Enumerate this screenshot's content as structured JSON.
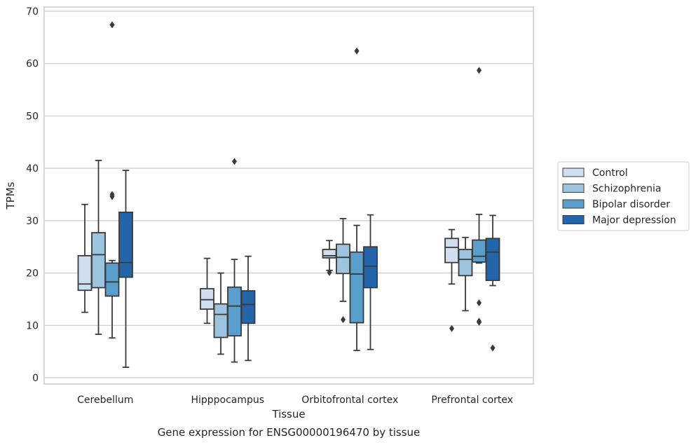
{
  "chart_data": {
    "type": "box",
    "caption": "Gene expression for ENSG00000196470 by tissue",
    "xlabel": "Tissue",
    "ylabel": "TPMs",
    "ylim": [
      -1.2,
      70.8
    ],
    "yticks": [
      0,
      10,
      20,
      30,
      40,
      50,
      60,
      70
    ],
    "grid": "horizontal",
    "legend_position": "right",
    "categories": [
      "Cerebellum",
      "Hipppocampus",
      "Orbitofrontal cortex",
      "Prefrontal cortex"
    ],
    "series": [
      {
        "name": "Control",
        "color": "#d0dff0",
        "boxes": [
          {
            "whisker_low": 12.5,
            "q1": 16.7,
            "median": 17.9,
            "q3": 23.3,
            "whisker_high": 33.1,
            "outliers": []
          },
          {
            "whisker_low": 10.4,
            "q1": 13.1,
            "median": 14.9,
            "q3": 17.0,
            "whisker_high": 22.8,
            "outliers": []
          },
          {
            "whisker_low": 20.5,
            "q1": 22.9,
            "median": 23.3,
            "q3": 24.5,
            "whisker_high": 26.2,
            "outliers": [
              20.1
            ]
          },
          {
            "whisker_low": 17.9,
            "q1": 22.0,
            "median": 24.9,
            "q3": 26.6,
            "whisker_high": 28.3,
            "outliers": [
              9.4
            ]
          }
        ]
      },
      {
        "name": "Schizophrenia",
        "color": "#9dc4df",
        "boxes": [
          {
            "whisker_low": 8.3,
            "q1": 17.2,
            "median": 23.5,
            "q3": 27.7,
            "whisker_high": 41.5,
            "outliers": []
          },
          {
            "whisker_low": 4.5,
            "q1": 7.7,
            "median": 12.1,
            "q3": 14.1,
            "whisker_high": 20.0,
            "outliers": []
          },
          {
            "whisker_low": 14.6,
            "q1": 19.9,
            "median": 23.0,
            "q3": 25.5,
            "whisker_high": 30.4,
            "outliers": [
              11.1
            ]
          },
          {
            "whisker_low": 12.8,
            "q1": 19.5,
            "median": 22.6,
            "q3": 24.5,
            "whisker_high": 26.8,
            "outliers": []
          }
        ]
      },
      {
        "name": "Bipolar disorder",
        "color": "#5a9ecb",
        "boxes": [
          {
            "whisker_low": 7.6,
            "q1": 15.6,
            "median": 18.3,
            "q3": 21.9,
            "whisker_high": 22.4,
            "outliers": [
              34.6,
              35.0,
              67.4
            ]
          },
          {
            "whisker_low": 3.0,
            "q1": 8.0,
            "median": 13.7,
            "q3": 17.3,
            "whisker_high": 22.6,
            "outliers": [
              41.3
            ]
          },
          {
            "whisker_low": 5.2,
            "q1": 10.5,
            "median": 19.8,
            "q3": 24.0,
            "whisker_high": 29.1,
            "outliers": [
              62.4
            ]
          },
          {
            "whisker_low": 21.9,
            "q1": 22.1,
            "median": 23.2,
            "q3": 26.3,
            "whisker_high": 31.2,
            "outliers": [
              14.3,
              10.8,
              10.6,
              58.7
            ]
          }
        ]
      },
      {
        "name": "Major depression",
        "color": "#2464a8",
        "boxes": [
          {
            "whisker_low": 2.0,
            "q1": 19.2,
            "median": 22.0,
            "q3": 31.6,
            "whisker_high": 39.6,
            "outliers": []
          },
          {
            "whisker_low": 3.3,
            "q1": 10.4,
            "median": 14.0,
            "q3": 16.6,
            "whisker_high": 23.2,
            "outliers": []
          },
          {
            "whisker_low": 5.4,
            "q1": 17.2,
            "median": 21.3,
            "q3": 25.0,
            "whisker_high": 31.1,
            "outliers": []
          },
          {
            "whisker_low": 17.6,
            "q1": 18.6,
            "median": 24.0,
            "q3": 26.6,
            "whisker_high": 31.0,
            "outliers": [
              5.7
            ]
          }
        ]
      }
    ]
  }
}
